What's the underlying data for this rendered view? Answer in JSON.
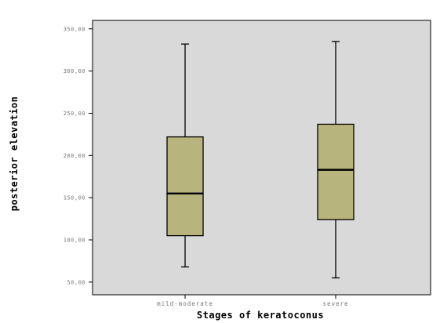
{
  "chart_data": {
    "type": "boxplot",
    "xlabel": "Stages of keratoconus",
    "ylabel": "posterior elevation",
    "ylim": [
      35,
      360
    ],
    "yticks": [
      50,
      100,
      150,
      200,
      250,
      300,
      350
    ],
    "ytick_labels": [
      "50,00",
      "100,00",
      "150,00",
      "200,00",
      "250,00",
      "300,00",
      "350,00"
    ],
    "grid": false,
    "categories": [
      "mild-moderate",
      "severe"
    ],
    "boxes": [
      {
        "category": "mild-moderate",
        "whisker_low": 68,
        "q1": 105,
        "median": 155,
        "q3": 222,
        "whisker_high": 332
      },
      {
        "category": "severe",
        "whisker_low": 55,
        "q1": 124,
        "median": 183,
        "q3": 237,
        "whisker_high": 335
      }
    ],
    "colors": {
      "page_background": "#ffffff",
      "plot_background": "#d9d9d9",
      "box_fill": "#b8b47d",
      "line": "#000000",
      "tick_text": "#777777"
    }
  }
}
